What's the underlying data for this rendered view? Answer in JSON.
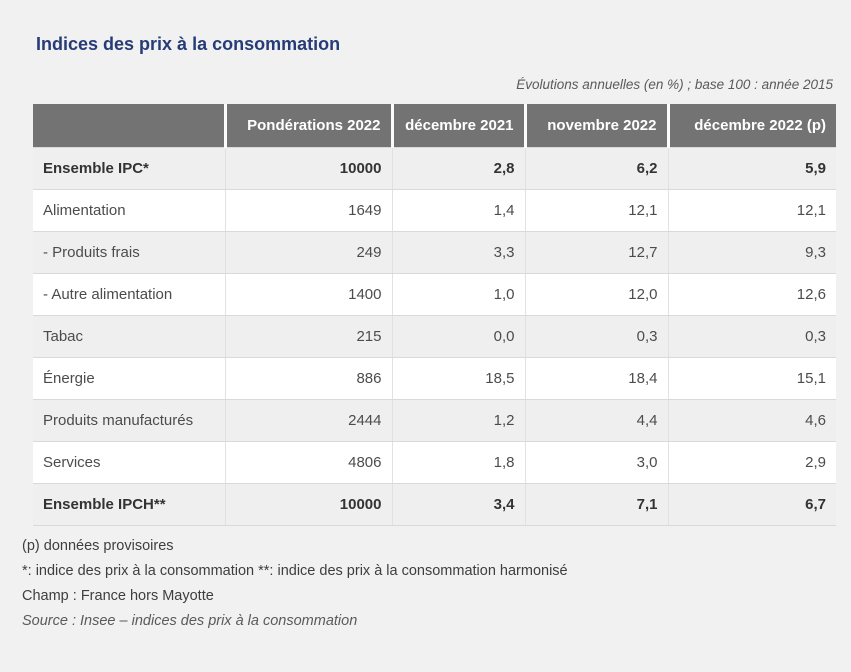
{
  "chart_data": {
    "type": "table",
    "title": "Indices des prix à la consommation",
    "subtitle": "Évolutions annuelles (en %) ; base 100 : année 2015",
    "columns": [
      "",
      "Pondérations 2022",
      "décembre 2021",
      "novembre 2022",
      "décembre 2022 (p)"
    ],
    "rows": [
      {
        "label": "Ensemble IPC*",
        "values": [
          "10000",
          "2,8",
          "6,2",
          "5,9"
        ],
        "bold": true
      },
      {
        "label": "Alimentation",
        "values": [
          "1649",
          "1,4",
          "12,1",
          "12,1"
        ],
        "bold": false
      },
      {
        "label": "- Produits frais",
        "values": [
          "249",
          "3,3",
          "12,7",
          "9,3"
        ],
        "bold": false
      },
      {
        "label": "- Autre alimentation",
        "values": [
          "1400",
          "1,0",
          "12,0",
          "12,6"
        ],
        "bold": false
      },
      {
        "label": "Tabac",
        "values": [
          "215",
          "0,0",
          "0,3",
          "0,3"
        ],
        "bold": false
      },
      {
        "label": "Énergie",
        "values": [
          "886",
          "18,5",
          "18,4",
          "15,1"
        ],
        "bold": false
      },
      {
        "label": "Produits manufacturés",
        "values": [
          "2444",
          "1,2",
          "4,4",
          "4,6"
        ],
        "bold": false
      },
      {
        "label": "Services",
        "values": [
          "4806",
          "1,8",
          "3,0",
          "2,9"
        ],
        "bold": false
      },
      {
        "label": "Ensemble IPCH**",
        "values": [
          "10000",
          "3,4",
          "7,1",
          "6,7"
        ],
        "bold": true
      }
    ]
  },
  "footnotes": {
    "provisional": "(p) données provisoires",
    "definitions": "*: indice des prix à la consommation **: indice des prix à la consommation harmonisé",
    "scope": "Champ : France hors Mayotte",
    "source": "Source : Insee – indices des prix à la consommation"
  },
  "colors": {
    "title": "#263c78",
    "header_bg": "#737373",
    "header_text": "#ffffff",
    "row_alt_bg": "#efefef",
    "page_bg": "#f1f1f1",
    "body_text": "#4c4c4c"
  }
}
